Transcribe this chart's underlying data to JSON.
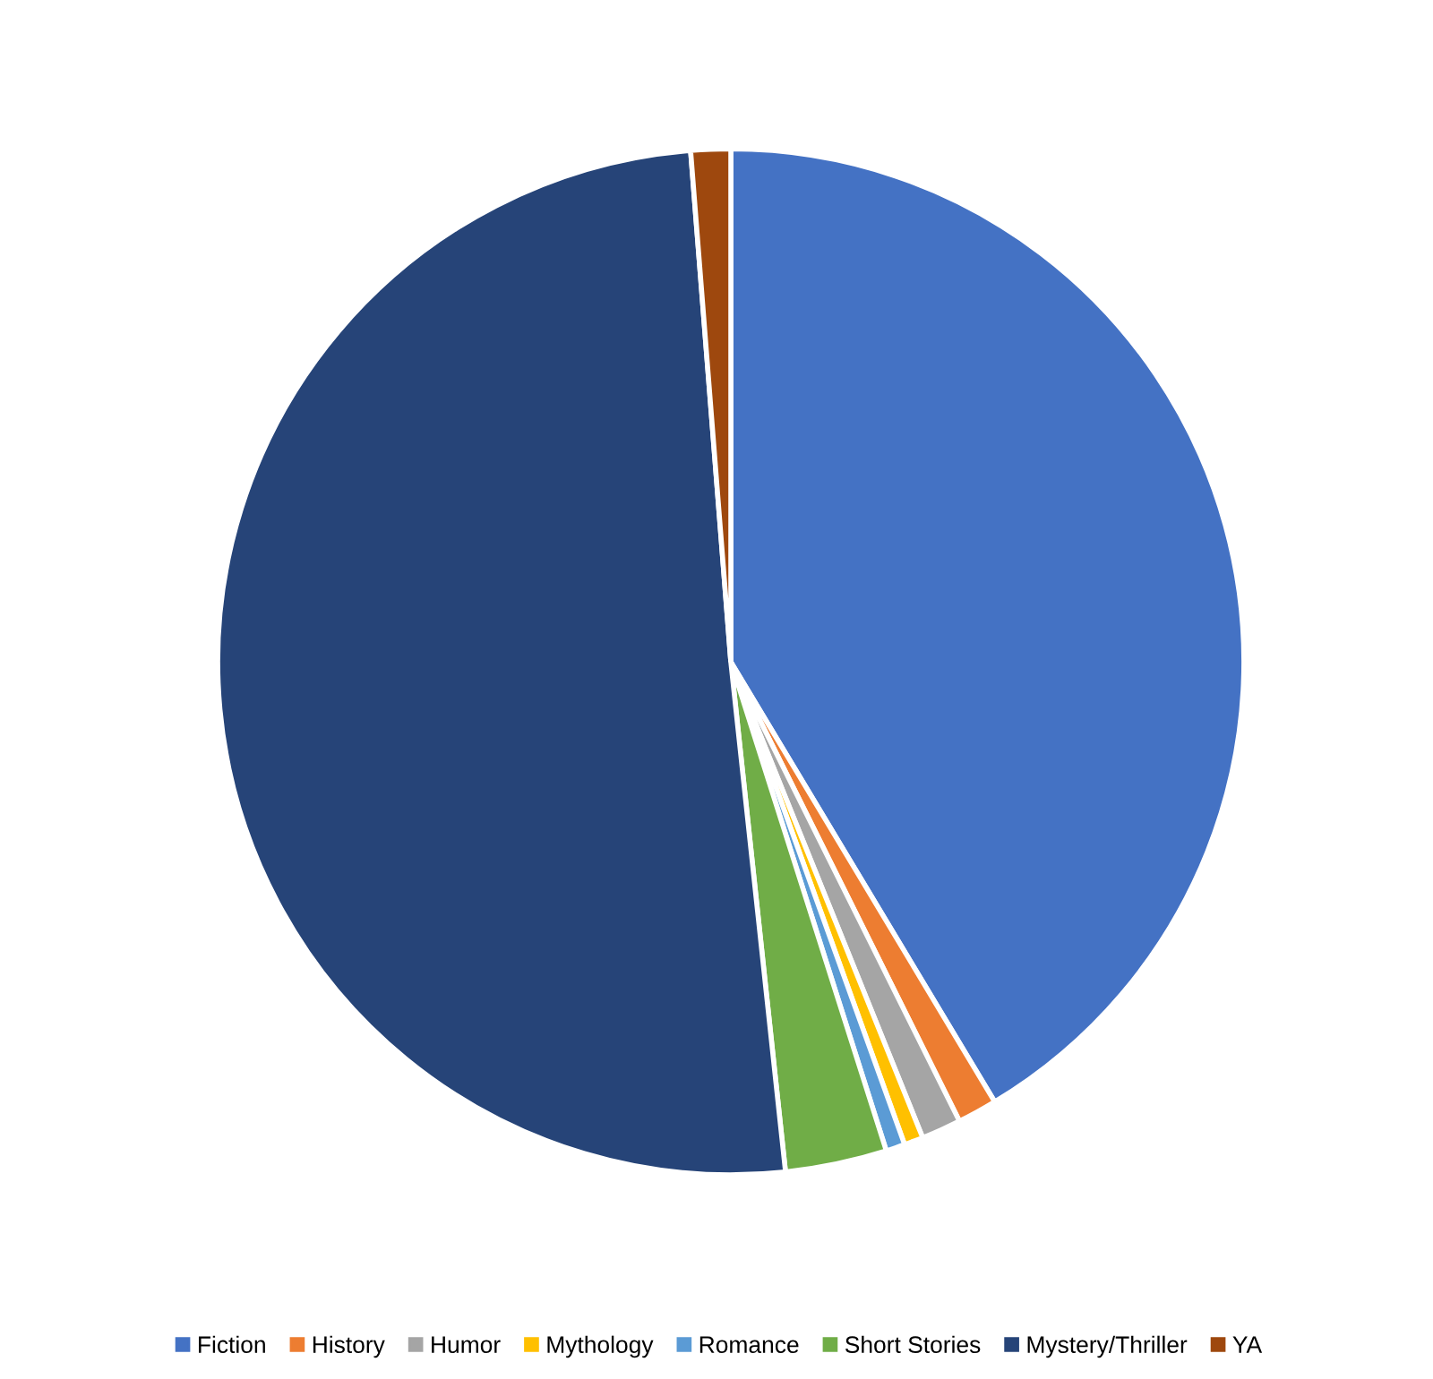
{
  "chart_data": {
    "type": "pie",
    "categories": [
      "Fiction",
      "History",
      "Humor",
      "Mythology",
      "Romance",
      "Short Stories",
      "Mystery/Thriller",
      "YA"
    ],
    "values": [
      41.4,
      1.25,
      1.25,
      0.6,
      0.6,
      3.2,
      50.45,
      1.25
    ],
    "colors": [
      "#4472c4",
      "#ed7d31",
      "#a5a5a5",
      "#ffc000",
      "#5b9bd5",
      "#70ad47",
      "#264478",
      "#9e480e"
    ],
    "legend": "bottom"
  }
}
